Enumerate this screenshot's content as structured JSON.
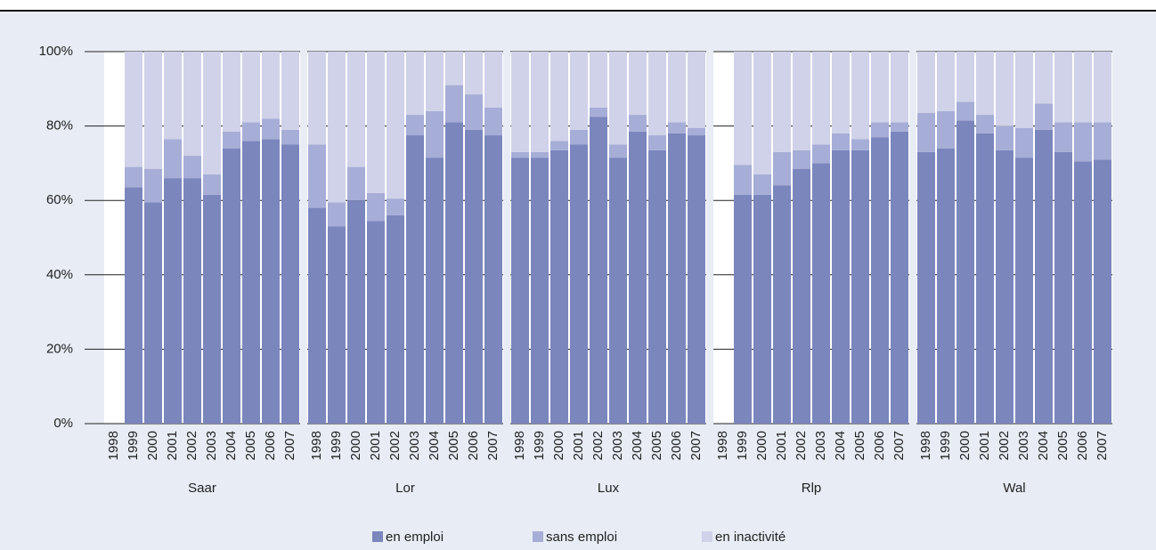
{
  "chart_data": {
    "type": "bar",
    "stacked": true,
    "groups": [
      "Saar",
      "Lor",
      "Lux",
      "Rlp",
      "Wal"
    ],
    "categories": [
      "1998",
      "1999",
      "2000",
      "2001",
      "2002",
      "2003",
      "2004",
      "2005",
      "2006",
      "2007"
    ],
    "series": [
      {
        "name": "en emploi",
        "color": "#7b86bd",
        "values": [
          [
            null,
            63.5,
            59.5,
            66,
            66,
            61.5,
            74,
            76,
            76.5,
            75
          ],
          [
            58,
            53,
            60,
            54.5,
            56,
            77.5,
            71.5,
            81,
            79,
            77.5
          ],
          [
            71.5,
            71.5,
            73.5,
            75,
            82.5,
            71.5,
            78.5,
            73.5,
            78,
            77.5
          ],
          [
            null,
            61.5,
            61.5,
            64,
            68.5,
            70,
            73.5,
            73.5,
            77,
            78.5
          ],
          [
            73,
            74,
            81.5,
            78,
            73.5,
            71.5,
            79,
            73,
            70.5,
            71
          ]
        ]
      },
      {
        "name": "sans emploi",
        "color": "#a6add6",
        "values": [
          [
            null,
            5.5,
            9,
            10.5,
            6,
            5.5,
            4.5,
            5,
            5.5,
            4
          ],
          [
            17,
            6.5,
            9,
            7.5,
            4.5,
            5.5,
            12.5,
            10,
            9.5,
            7.5
          ],
          [
            1.5,
            1.5,
            2.5,
            4,
            2.5,
            3.5,
            4.5,
            4,
            3,
            2
          ],
          [
            null,
            8,
            5.5,
            9,
            5,
            5,
            4.5,
            3,
            4,
            2.5
          ],
          [
            10.5,
            10,
            5,
            5,
            6.5,
            8,
            7,
            8,
            10.5,
            10
          ]
        ]
      },
      {
        "name": "en inactivité",
        "color": "#cfd2e8",
        "values": [
          [
            null,
            31,
            31.5,
            23.5,
            28,
            33,
            21.5,
            19,
            18,
            21
          ],
          [
            25,
            40.5,
            31,
            38,
            39.5,
            17,
            16,
            9,
            11.5,
            15
          ],
          [
            27,
            27,
            24,
            21,
            15,
            25,
            17,
            22.5,
            19,
            20.5
          ],
          [
            null,
            30.5,
            33,
            27,
            26.5,
            25,
            22,
            23.5,
            19,
            19
          ],
          [
            16.5,
            16,
            13.5,
            17,
            20,
            20.5,
            14,
            19,
            19,
            19
          ]
        ]
      }
    ],
    "ylim": [
      0,
      100
    ],
    "yticks": [
      {
        "value": 0,
        "label": "0%"
      },
      {
        "value": 20,
        "label": "20%"
      },
      {
        "value": 40,
        "label": "40%"
      },
      {
        "value": 60,
        "label": "60%"
      },
      {
        "value": 80,
        "label": "80%"
      },
      {
        "value": 100,
        "label": "100%"
      }
    ],
    "grid": true
  }
}
